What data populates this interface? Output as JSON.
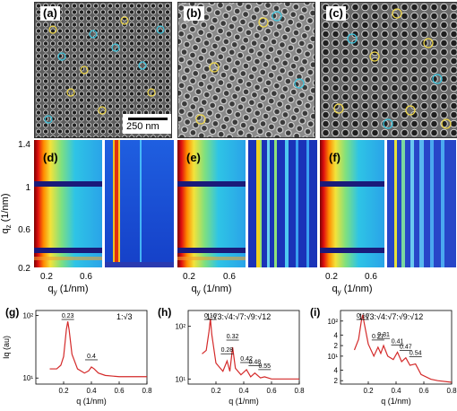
{
  "sem_panels": [
    {
      "label": "(a)",
      "scale_bar": "250 nm"
    },
    {
      "label": "(b)"
    },
    {
      "label": "(c)"
    }
  ],
  "saxs_panels": [
    {
      "label": "(d)"
    },
    {
      "label": "(e)"
    },
    {
      "label": "(f)"
    }
  ],
  "saxs_axes": {
    "ylabel_main": "q",
    "ylabel_sub": "z",
    "ylabel_unit": " (1/nm)",
    "xlabel_main": "q",
    "xlabel_sub": "y",
    "xlabel_unit": " (1/nm)",
    "y_ticks": [
      "1.4",
      "1",
      "0.6",
      "0.2"
    ],
    "x_ticks": [
      "0.2",
      "0.6"
    ]
  },
  "chart_data": [
    {
      "type": "line",
      "label": "(g)",
      "ratio_text": "1:√3",
      "x_ticks": [
        "0.2",
        "0.4",
        "0.6",
        "0.8"
      ],
      "y_ticks": [
        "10¹",
        "10²"
      ],
      "xlabel": "q (1/nm)",
      "ylabel": "Iq  (au)",
      "xlim": [
        0.0,
        0.8
      ],
      "peaks": [
        {
          "q": 0.23,
          "label": "0.23"
        },
        {
          "q": 0.4,
          "label": "0.4"
        }
      ],
      "series": [
        {
          "x": [
            0.1,
            0.15,
            0.18,
            0.2,
            0.22,
            0.23,
            0.24,
            0.26,
            0.3,
            0.35,
            0.38,
            0.4,
            0.42,
            0.45,
            0.5,
            0.6,
            0.7,
            0.8
          ],
          "y": [
            14,
            14,
            16,
            22,
            60,
            80,
            58,
            24,
            14,
            12,
            13,
            15,
            14,
            12,
            11,
            10.5,
            10.5,
            10.5
          ]
        }
      ]
    },
    {
      "type": "line",
      "label": "(h)",
      "ratio_text": "1:√3:√4:√7:√9:√12",
      "x_ticks": [
        "0.2",
        "0.4",
        "0.6",
        "0.8"
      ],
      "y_ticks": [
        "10¹",
        "10²"
      ],
      "xlabel": "q (1/nm)",
      "xlim": [
        0.0,
        0.8
      ],
      "peaks": [
        {
          "q": 0.16,
          "label": "0.16"
        },
        {
          "q": 0.28,
          "label": "0.28"
        },
        {
          "q": 0.32,
          "label": "0.32"
        },
        {
          "q": 0.42,
          "label": "0.42"
        },
        {
          "q": 0.48,
          "label": "0.48"
        },
        {
          "q": 0.55,
          "label": "0.55"
        }
      ],
      "series": [
        {
          "x": [
            0.1,
            0.13,
            0.15,
            0.16,
            0.17,
            0.2,
            0.25,
            0.28,
            0.3,
            0.32,
            0.34,
            0.38,
            0.42,
            0.45,
            0.48,
            0.52,
            0.55,
            0.6,
            0.7,
            0.8
          ],
          "y": [
            30,
            35,
            80,
            140,
            70,
            20,
            14,
            22,
            14,
            40,
            16,
            12,
            15,
            11,
            13,
            10.5,
            11,
            10,
            10,
            10
          ]
        }
      ]
    },
    {
      "type": "line",
      "label": "(i)",
      "ratio_text": "1:√3:√4:√7:√9:√12",
      "x_ticks": [
        "0.2",
        "0.4",
        "0.6",
        "0.8"
      ],
      "y_ticks": [
        "2",
        "4",
        "10¹",
        "2",
        "4",
        "10²"
      ],
      "xlabel": "q (1/nm)",
      "xlim": [
        0.0,
        0.8
      ],
      "peaks": [
        {
          "q": 0.16,
          "label": "0.16"
        },
        {
          "q": 0.27,
          "label": "0.27"
        },
        {
          "q": 0.31,
          "label": "0.31"
        },
        {
          "q": 0.41,
          "label": "0.41"
        },
        {
          "q": 0.47,
          "label": "0.47"
        },
        {
          "q": 0.54,
          "label": "0.54"
        }
      ],
      "series": [
        {
          "x": [
            0.1,
            0.13,
            0.15,
            0.16,
            0.17,
            0.2,
            0.24,
            0.27,
            0.29,
            0.31,
            0.34,
            0.38,
            0.41,
            0.44,
            0.47,
            0.5,
            0.54,
            0.58,
            0.65,
            0.7,
            0.8
          ],
          "y": [
            15,
            30,
            100,
            150,
            90,
            22,
            10,
            18,
            12,
            20,
            10,
            8,
            13,
            7,
            9,
            5.5,
            6,
            3,
            2.2,
            2,
            1.8
          ]
        }
      ]
    }
  ]
}
